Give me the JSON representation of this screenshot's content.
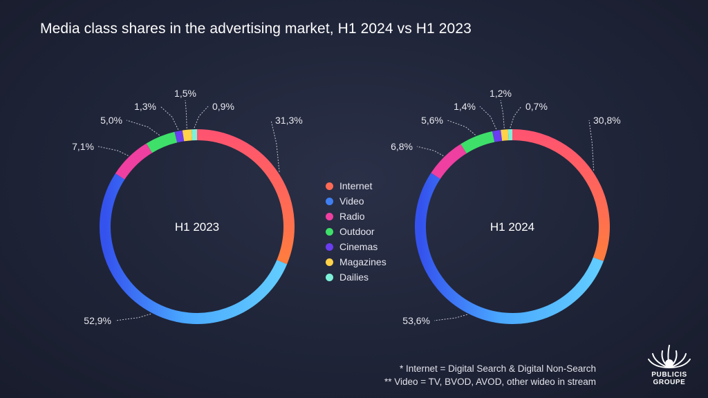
{
  "title": "Media class shares in the advertising market, H1 2024 vs H1 2023",
  "footnotes": [
    "* Internet = Digital Search & Digital Non-Search",
    "** Video = TV, BVOD, AVOD, other wideo in stream"
  ],
  "logo": {
    "line1": "PUBLICIS",
    "line2": "GROUPE",
    "icon": "lion-head-icon"
  },
  "colors": {
    "background": "#1f2438",
    "internet_start": "#ff5a6a",
    "internet_end": "#ff7a45",
    "video_start": "#5ec6ff",
    "video_end": "#3a5cf0",
    "radio": "#ef3fa0",
    "outdoor": "#3ee06a",
    "cinemas": "#6a3df0",
    "magazines": "#ffd24a",
    "dailies": "#7ef0d8"
  },
  "legend": [
    {
      "label": "Internet",
      "color": "#ff6a55"
    },
    {
      "label": "Video",
      "color": "#3f7ff2"
    },
    {
      "label": "Radio",
      "color": "#ef3fa0"
    },
    {
      "label": "Outdoor",
      "color": "#3ee06a"
    },
    {
      "label": "Cinemas",
      "color": "#6a3df0"
    },
    {
      "label": "Magazines",
      "color": "#ffd24a"
    },
    {
      "label": "Dailies",
      "color": "#7ef0d8"
    }
  ],
  "chart_data": [
    {
      "type": "pie",
      "title": "H1 2023",
      "categories": [
        "Internet",
        "Video",
        "Radio",
        "Outdoor",
        "Cinemas",
        "Magazines",
        "Dailies"
      ],
      "values": [
        31.3,
        52.9,
        7.1,
        5.0,
        1.3,
        1.5,
        0.9
      ],
      "value_labels": [
        "31,3%",
        "52,9%",
        "7,1%",
        "5,0%",
        "1,3%",
        "1,5%",
        "0,9%"
      ]
    },
    {
      "type": "pie",
      "title": "H1 2024",
      "categories": [
        "Internet",
        "Video",
        "Radio",
        "Outdoor",
        "Cinemas",
        "Magazines",
        "Dailies"
      ],
      "values": [
        30.8,
        53.6,
        6.8,
        5.6,
        1.4,
        1.2,
        0.7
      ],
      "value_labels": [
        "30,8%",
        "53,6%",
        "6,8%",
        "5,6%",
        "1,4%",
        "1,2%",
        "0,7%"
      ]
    }
  ]
}
